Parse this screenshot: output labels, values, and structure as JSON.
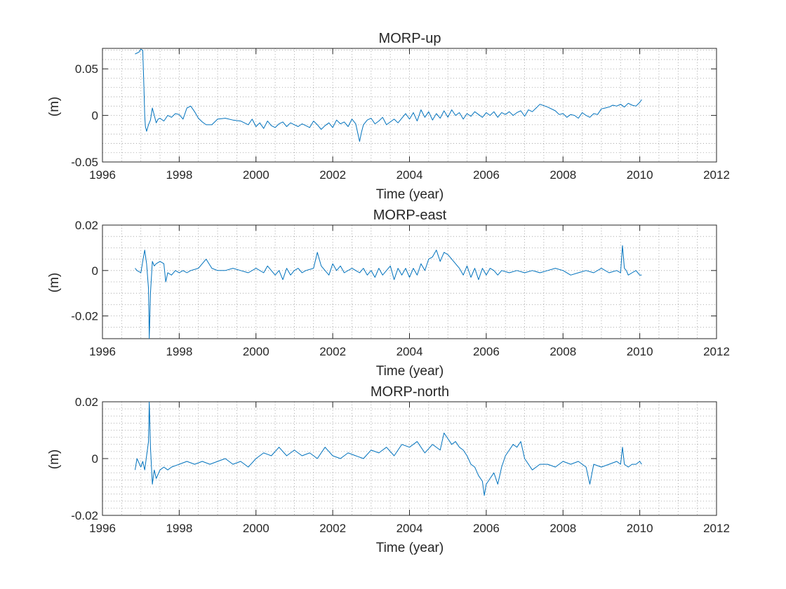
{
  "chart_data": [
    {
      "type": "line",
      "title": "MORP-up",
      "xlabel": "Time (year)",
      "ylabel": "(m)",
      "xlim": [
        1996,
        2012
      ],
      "ylim": [
        -0.05,
        0.072
      ],
      "xticks": [
        1996,
        1998,
        2000,
        2002,
        2004,
        2006,
        2008,
        2010,
        2012
      ],
      "xtick_labels": [
        "1996",
        "1998",
        "2000",
        "2002",
        "2004",
        "2006",
        "2008",
        "2010",
        "2012"
      ],
      "yticks": [
        -0.05,
        0,
        0.05
      ],
      "ytick_labels": [
        "-0.05",
        "0",
        "0.05"
      ],
      "minor_grid": true,
      "line_color": "#0072BD",
      "series": [
        {
          "x": [
            1996.85,
            1996.95,
            1997.0,
            1997.05,
            1997.08,
            1997.1,
            1997.12,
            1997.15,
            1997.2,
            1997.25,
            1997.3,
            1997.4,
            1997.45,
            1997.5,
            1997.6,
            1997.7,
            1997.8,
            1997.9,
            1998.0,
            1998.1,
            1998.2,
            1998.3,
            1998.4,
            1998.5,
            1998.6,
            1998.7,
            1998.85,
            1999.0,
            1999.2,
            1999.4,
            1999.6,
            1999.8,
            1999.9,
            2000.0,
            2000.1,
            2000.2,
            2000.3,
            2000.4,
            2000.5,
            2000.6,
            2000.7,
            2000.8,
            2000.9,
            2001.0,
            2001.1,
            2001.2,
            2001.3,
            2001.4,
            2001.5,
            2001.6,
            2001.7,
            2001.8,
            2001.9,
            2002.0,
            2002.1,
            2002.2,
            2002.3,
            2002.4,
            2002.5,
            2002.6,
            2002.7,
            2002.75,
            2002.8,
            2002.9,
            2003.0,
            2003.1,
            2003.2,
            2003.3,
            2003.4,
            2003.5,
            2003.6,
            2003.7,
            2003.8,
            2003.9,
            2004.0,
            2004.1,
            2004.2,
            2004.3,
            2004.4,
            2004.5,
            2004.6,
            2004.7,
            2004.8,
            2004.9,
            2005.0,
            2005.1,
            2005.2,
            2005.3,
            2005.4,
            2005.5,
            2005.6,
            2005.7,
            2005.8,
            2005.9,
            2006.0,
            2006.1,
            2006.2,
            2006.3,
            2006.4,
            2006.5,
            2006.6,
            2006.7,
            2006.8,
            2006.9,
            2007.0,
            2007.1,
            2007.2,
            2007.3,
            2007.4,
            2007.6,
            2007.8,
            2007.9,
            2008.0,
            2008.1,
            2008.2,
            2008.3,
            2008.4,
            2008.5,
            2008.6,
            2008.7,
            2008.8,
            2008.9,
            2009.0,
            2009.1,
            2009.2,
            2009.3,
            2009.4,
            2009.5,
            2009.6,
            2009.7,
            2009.8,
            2009.9,
            2010.0,
            2010.05
          ],
          "y": [
            0.066,
            0.068,
            0.071,
            0.07,
            0.03,
            0.0,
            -0.012,
            -0.017,
            -0.01,
            -0.005,
            0.008,
            -0.008,
            -0.004,
            -0.003,
            -0.006,
            0.0,
            -0.002,
            0.002,
            0.001,
            -0.004,
            0.008,
            0.01,
            0.004,
            -0.003,
            -0.007,
            -0.01,
            -0.01,
            -0.004,
            -0.003,
            -0.005,
            -0.006,
            -0.01,
            -0.004,
            -0.012,
            -0.008,
            -0.014,
            -0.006,
            -0.011,
            -0.013,
            -0.009,
            -0.007,
            -0.012,
            -0.008,
            -0.01,
            -0.012,
            -0.009,
            -0.011,
            -0.013,
            -0.006,
            -0.01,
            -0.015,
            -0.011,
            -0.008,
            -0.013,
            -0.005,
            -0.009,
            -0.007,
            -0.012,
            -0.004,
            -0.009,
            -0.028,
            -0.018,
            -0.01,
            -0.005,
            -0.003,
            -0.009,
            -0.006,
            -0.002,
            -0.01,
            -0.007,
            -0.004,
            -0.008,
            -0.003,
            0.002,
            -0.004,
            0.003,
            -0.006,
            0.006,
            -0.002,
            0.004,
            -0.005,
            0.002,
            -0.003,
            0.005,
            -0.002,
            0.006,
            0.0,
            0.003,
            -0.004,
            0.002,
            -0.001,
            0.004,
            0.001,
            -0.002,
            0.003,
            0.0,
            0.004,
            -0.002,
            0.003,
            0.001,
            0.004,
            0.0,
            0.003,
            0.005,
            -0.001,
            0.006,
            0.004,
            0.008,
            0.012,
            0.009,
            0.005,
            0.001,
            0.002,
            -0.002,
            0.001,
            0.0,
            -0.003,
            0.003,
            0.0,
            -0.002,
            0.002,
            0.001,
            0.007,
            0.008,
            0.009,
            0.011,
            0.01,
            0.012,
            0.009,
            0.013,
            0.011,
            0.01,
            0.014,
            0.017
          ]
        }
      ]
    },
    {
      "type": "line",
      "title": "MORP-east",
      "xlabel": "Time (year)",
      "ylabel": "(m)",
      "xlim": [
        1996,
        2012
      ],
      "ylim": [
        -0.03,
        0.02
      ],
      "xticks": [
        1996,
        1998,
        2000,
        2002,
        2004,
        2006,
        2008,
        2010,
        2012
      ],
      "xtick_labels": [
        "1996",
        "1998",
        "2000",
        "2002",
        "2004",
        "2006",
        "2008",
        "2010",
        "2012"
      ],
      "yticks": [
        -0.02,
        0,
        0.02
      ],
      "ytick_labels": [
        "-0.02",
        "0",
        "0.02"
      ],
      "minor_grid": true,
      "line_color": "#0072BD",
      "series": [
        {
          "x": [
            1996.85,
            1996.9,
            1997.0,
            1997.05,
            1997.1,
            1997.15,
            1997.2,
            1997.22,
            1997.25,
            1997.3,
            1997.35,
            1997.4,
            1997.5,
            1997.6,
            1997.65,
            1997.7,
            1997.8,
            1997.9,
            1998.0,
            1998.1,
            1998.2,
            1998.3,
            1998.5,
            1998.7,
            1998.85,
            1999.0,
            1999.2,
            1999.4,
            1999.6,
            1999.8,
            2000.0,
            2000.2,
            2000.3,
            2000.5,
            2000.6,
            2000.7,
            2000.8,
            2000.9,
            2001.0,
            2001.1,
            2001.2,
            2001.3,
            2001.5,
            2001.6,
            2001.7,
            2001.8,
            2001.9,
            2002.0,
            2002.1,
            2002.2,
            2002.3,
            2002.5,
            2002.7,
            2002.8,
            2002.9,
            2003.0,
            2003.1,
            2003.2,
            2003.3,
            2003.4,
            2003.5,
            2003.6,
            2003.7,
            2003.8,
            2003.9,
            2004.0,
            2004.1,
            2004.2,
            2004.3,
            2004.4,
            2004.5,
            2004.6,
            2004.7,
            2004.8,
            2004.9,
            2005.0,
            2005.1,
            2005.2,
            2005.3,
            2005.4,
            2005.5,
            2005.6,
            2005.7,
            2005.8,
            2005.9,
            2006.0,
            2006.1,
            2006.2,
            2006.3,
            2006.4,
            2006.6,
            2006.8,
            2007.0,
            2007.2,
            2007.4,
            2007.6,
            2007.8,
            2008.0,
            2008.2,
            2008.4,
            2008.6,
            2008.8,
            2009.0,
            2009.2,
            2009.4,
            2009.5,
            2009.55,
            2009.6,
            2009.65,
            2009.7,
            2009.8,
            2009.9,
            2010.0,
            2010.05
          ],
          "y": [
            0.001,
            0.0,
            -0.001,
            0.004,
            0.009,
            0.003,
            -0.008,
            -0.03,
            -0.01,
            0.004,
            0.002,
            0.003,
            0.004,
            0.003,
            -0.005,
            -0.001,
            -0.002,
            0.0,
            -0.001,
            0.0,
            -0.001,
            0.0,
            0.001,
            0.005,
            0.001,
            0.0,
            0.0,
            0.001,
            0.0,
            -0.001,
            0.001,
            -0.001,
            0.002,
            -0.002,
            0.0,
            -0.004,
            0.001,
            -0.002,
            0.0,
            0.001,
            -0.001,
            0.0,
            0.001,
            0.008,
            0.002,
            0.0,
            -0.002,
            0.003,
            0.0,
            0.002,
            -0.001,
            0.001,
            -0.001,
            0.001,
            -0.002,
            0.0,
            -0.003,
            0.001,
            -0.002,
            0.0,
            0.002,
            -0.004,
            0.001,
            -0.002,
            0.001,
            -0.003,
            0.001,
            -0.002,
            0.003,
            0.0,
            0.005,
            0.006,
            0.009,
            0.004,
            0.008,
            0.007,
            0.005,
            0.003,
            0.001,
            -0.002,
            0.002,
            -0.003,
            0.001,
            -0.004,
            0.001,
            -0.002,
            0.001,
            0.0,
            -0.002,
            0.0,
            -0.001,
            0.0,
            -0.001,
            0.0,
            -0.001,
            0.0,
            0.001,
            0.0,
            -0.002,
            -0.001,
            0.0,
            -0.001,
            0.001,
            -0.001,
            0.0,
            -0.001,
            0.011,
            0.001,
            0.0,
            -0.002,
            -0.001,
            0.0,
            -0.002,
            -0.002
          ]
        }
      ]
    },
    {
      "type": "line",
      "title": "MORP-north",
      "xlabel": "Time (year)",
      "ylabel": "(m)",
      "xlim": [
        1996,
        2012
      ],
      "ylim": [
        -0.02,
        0.02
      ],
      "xticks": [
        1996,
        1998,
        2000,
        2002,
        2004,
        2006,
        2008,
        2010,
        2012
      ],
      "xtick_labels": [
        "1996",
        "1998",
        "2000",
        "2002",
        "2004",
        "2006",
        "2008",
        "2010",
        "2012"
      ],
      "yticks": [
        -0.02,
        0,
        0.02
      ],
      "ytick_labels": [
        "-0.02",
        "0",
        "0.02"
      ],
      "minor_grid": true,
      "line_color": "#0072BD",
      "series": [
        {
          "x": [
            1996.85,
            1996.9,
            1997.0,
            1997.05,
            1997.1,
            1997.15,
            1997.2,
            1997.22,
            1997.25,
            1997.3,
            1997.35,
            1997.4,
            1997.5,
            1997.6,
            1997.7,
            1997.8,
            1998.0,
            1998.2,
            1998.4,
            1998.6,
            1998.8,
            1999.0,
            1999.2,
            1999.4,
            1999.6,
            1999.8,
            2000.0,
            2000.2,
            2000.4,
            2000.6,
            2000.8,
            2001.0,
            2001.2,
            2001.4,
            2001.6,
            2001.8,
            2002.0,
            2002.2,
            2002.4,
            2002.6,
            2002.8,
            2003.0,
            2003.2,
            2003.4,
            2003.6,
            2003.8,
            2004.0,
            2004.2,
            2004.4,
            2004.6,
            2004.8,
            2004.9,
            2005.0,
            2005.1,
            2005.2,
            2005.3,
            2005.4,
            2005.5,
            2005.6,
            2005.7,
            2005.8,
            2005.9,
            2005.95,
            2006.0,
            2006.1,
            2006.2,
            2006.3,
            2006.4,
            2006.5,
            2006.6,
            2006.7,
            2006.8,
            2006.9,
            2007.0,
            2007.2,
            2007.4,
            2007.6,
            2007.8,
            2008.0,
            2008.2,
            2008.4,
            2008.6,
            2008.7,
            2008.8,
            2009.0,
            2009.2,
            2009.4,
            2009.5,
            2009.55,
            2009.6,
            2009.7,
            2009.8,
            2009.9,
            2010.0,
            2010.05
          ],
          "y": [
            -0.004,
            0.0,
            -0.003,
            -0.001,
            -0.004,
            0.001,
            0.006,
            0.02,
            0.004,
            -0.009,
            -0.004,
            -0.007,
            -0.004,
            -0.003,
            -0.004,
            -0.003,
            -0.002,
            -0.001,
            -0.002,
            -0.001,
            -0.002,
            -0.001,
            0.0,
            -0.002,
            -0.001,
            -0.003,
            0.0,
            0.002,
            0.001,
            0.004,
            0.001,
            0.003,
            0.001,
            0.002,
            0.0,
            0.004,
            0.001,
            0.0,
            0.002,
            0.001,
            0.0,
            0.003,
            0.002,
            0.004,
            0.001,
            0.005,
            0.004,
            0.006,
            0.002,
            0.005,
            0.003,
            0.009,
            0.007,
            0.005,
            0.006,
            0.004,
            0.003,
            0.001,
            -0.002,
            -0.003,
            -0.006,
            -0.008,
            -0.013,
            -0.009,
            -0.007,
            -0.005,
            -0.009,
            -0.003,
            0.001,
            0.003,
            0.005,
            0.004,
            0.006,
            0.0,
            -0.004,
            -0.002,
            -0.002,
            -0.003,
            -0.001,
            -0.002,
            -0.001,
            -0.003,
            -0.009,
            -0.002,
            -0.003,
            -0.002,
            -0.001,
            -0.002,
            0.004,
            -0.002,
            -0.003,
            -0.002,
            -0.002,
            -0.001,
            -0.002
          ]
        }
      ]
    }
  ]
}
